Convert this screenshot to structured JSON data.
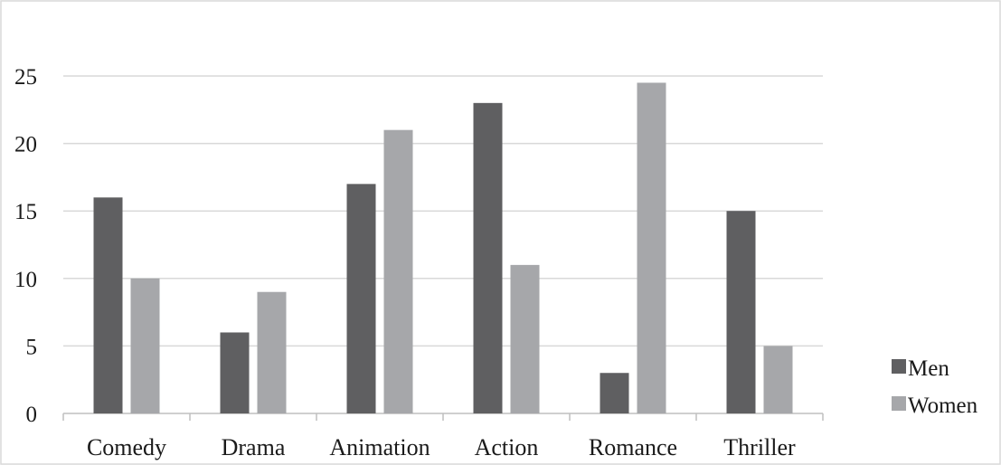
{
  "chart_data": {
    "type": "bar",
    "categories": [
      "Comedy",
      "Drama",
      "Animation",
      "Action",
      "Romance",
      "Thriller"
    ],
    "series": [
      {
        "name": "Men",
        "values": [
          16,
          6,
          17,
          23,
          3,
          15
        ],
        "color": "#5f5f61"
      },
      {
        "name": "Women",
        "values": [
          10,
          9,
          21,
          11,
          24.5,
          5
        ],
        "color": "#a6a7aa"
      }
    ],
    "title": "",
    "xlabel": "",
    "ylabel": "",
    "ylim": [
      0,
      25
    ],
    "yticks": [
      "0",
      "5",
      "10",
      "15",
      "20",
      "25"
    ],
    "grid": true,
    "legend_position": "right",
    "colors": {
      "gridline": "#d9d9d9",
      "axis": "#bfbfbf",
      "frame": "#d9d9d9"
    }
  }
}
